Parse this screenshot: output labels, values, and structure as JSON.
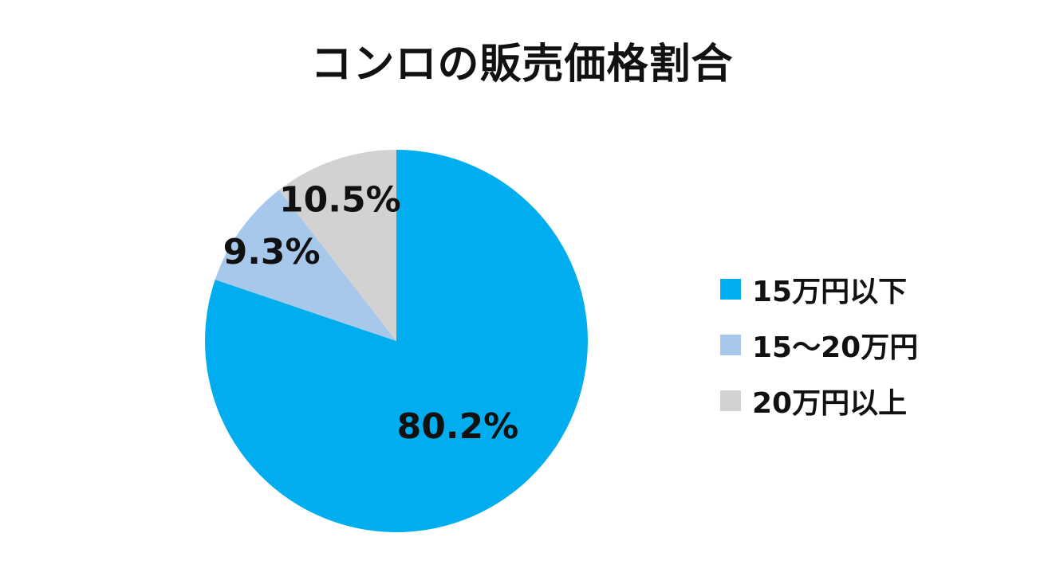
{
  "chart_data": {
    "type": "pie",
    "title": "コンロの販売価格割合",
    "categories": [
      "15万円以下",
      "15〜20万円",
      "20万円以上"
    ],
    "values": [
      80.2,
      9.3,
      10.5
    ],
    "data_labels": [
      "80.2%",
      "9.3%",
      "10.5%"
    ],
    "colors": [
      "#00AEEF",
      "#A7C8EB",
      "#D2D2D2"
    ],
    "start_angle": "12 o'clock",
    "direction": "clockwise",
    "legend_position": "right"
  }
}
